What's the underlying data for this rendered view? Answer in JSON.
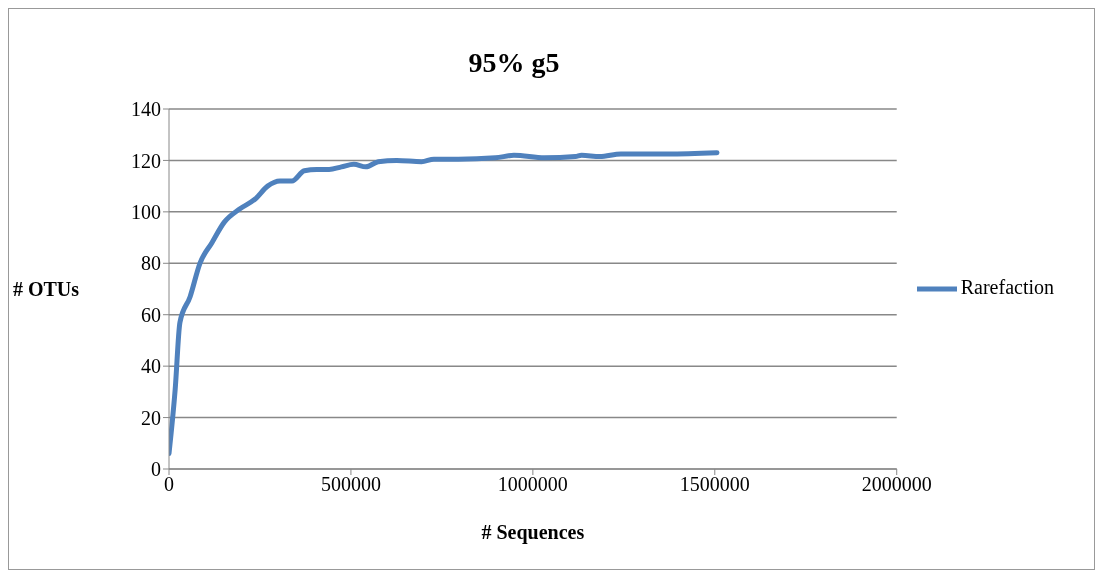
{
  "chart_data": {
    "type": "line",
    "title": "95%  g5",
    "xlabel": "# Sequences",
    "ylabel": "# OTUs",
    "x": [
      0,
      17000,
      30000,
      58000,
      85000,
      118000,
      152000,
      193000,
      237000,
      271000,
      305000,
      338000,
      372000,
      406000,
      440000,
      474000,
      508000,
      541000,
      575000,
      626000,
      694000,
      728000,
      795000,
      897000,
      948000,
      1032000,
      1117000,
      1134000,
      1184000,
      1242000,
      1303000,
      1371000,
      1506000
    ],
    "series": [
      {
        "name": "Rarefaction",
        "color": "#4f81bd",
        "values": [
          6,
          31,
          57,
          67,
          80,
          88,
          96,
          101,
          105,
          110,
          112,
          112,
          116,
          116.5,
          116.5,
          117.5,
          118.5,
          117.5,
          119.5,
          120,
          119.5,
          120.5,
          120.5,
          121,
          122,
          121,
          121.5,
          122,
          121.5,
          122.5,
          122.5,
          122.5,
          123
        ]
      }
    ],
    "xlim": [
      0,
      2000000
    ],
    "xticks": [
      0,
      500000,
      1000000,
      1500000,
      2000000
    ],
    "ylim": [
      0,
      140
    ],
    "yticks": [
      0,
      20,
      40,
      60,
      80,
      100,
      120,
      140
    ],
    "grid": "y",
    "legend": "right",
    "marker": "none",
    "line_style": "solid"
  }
}
